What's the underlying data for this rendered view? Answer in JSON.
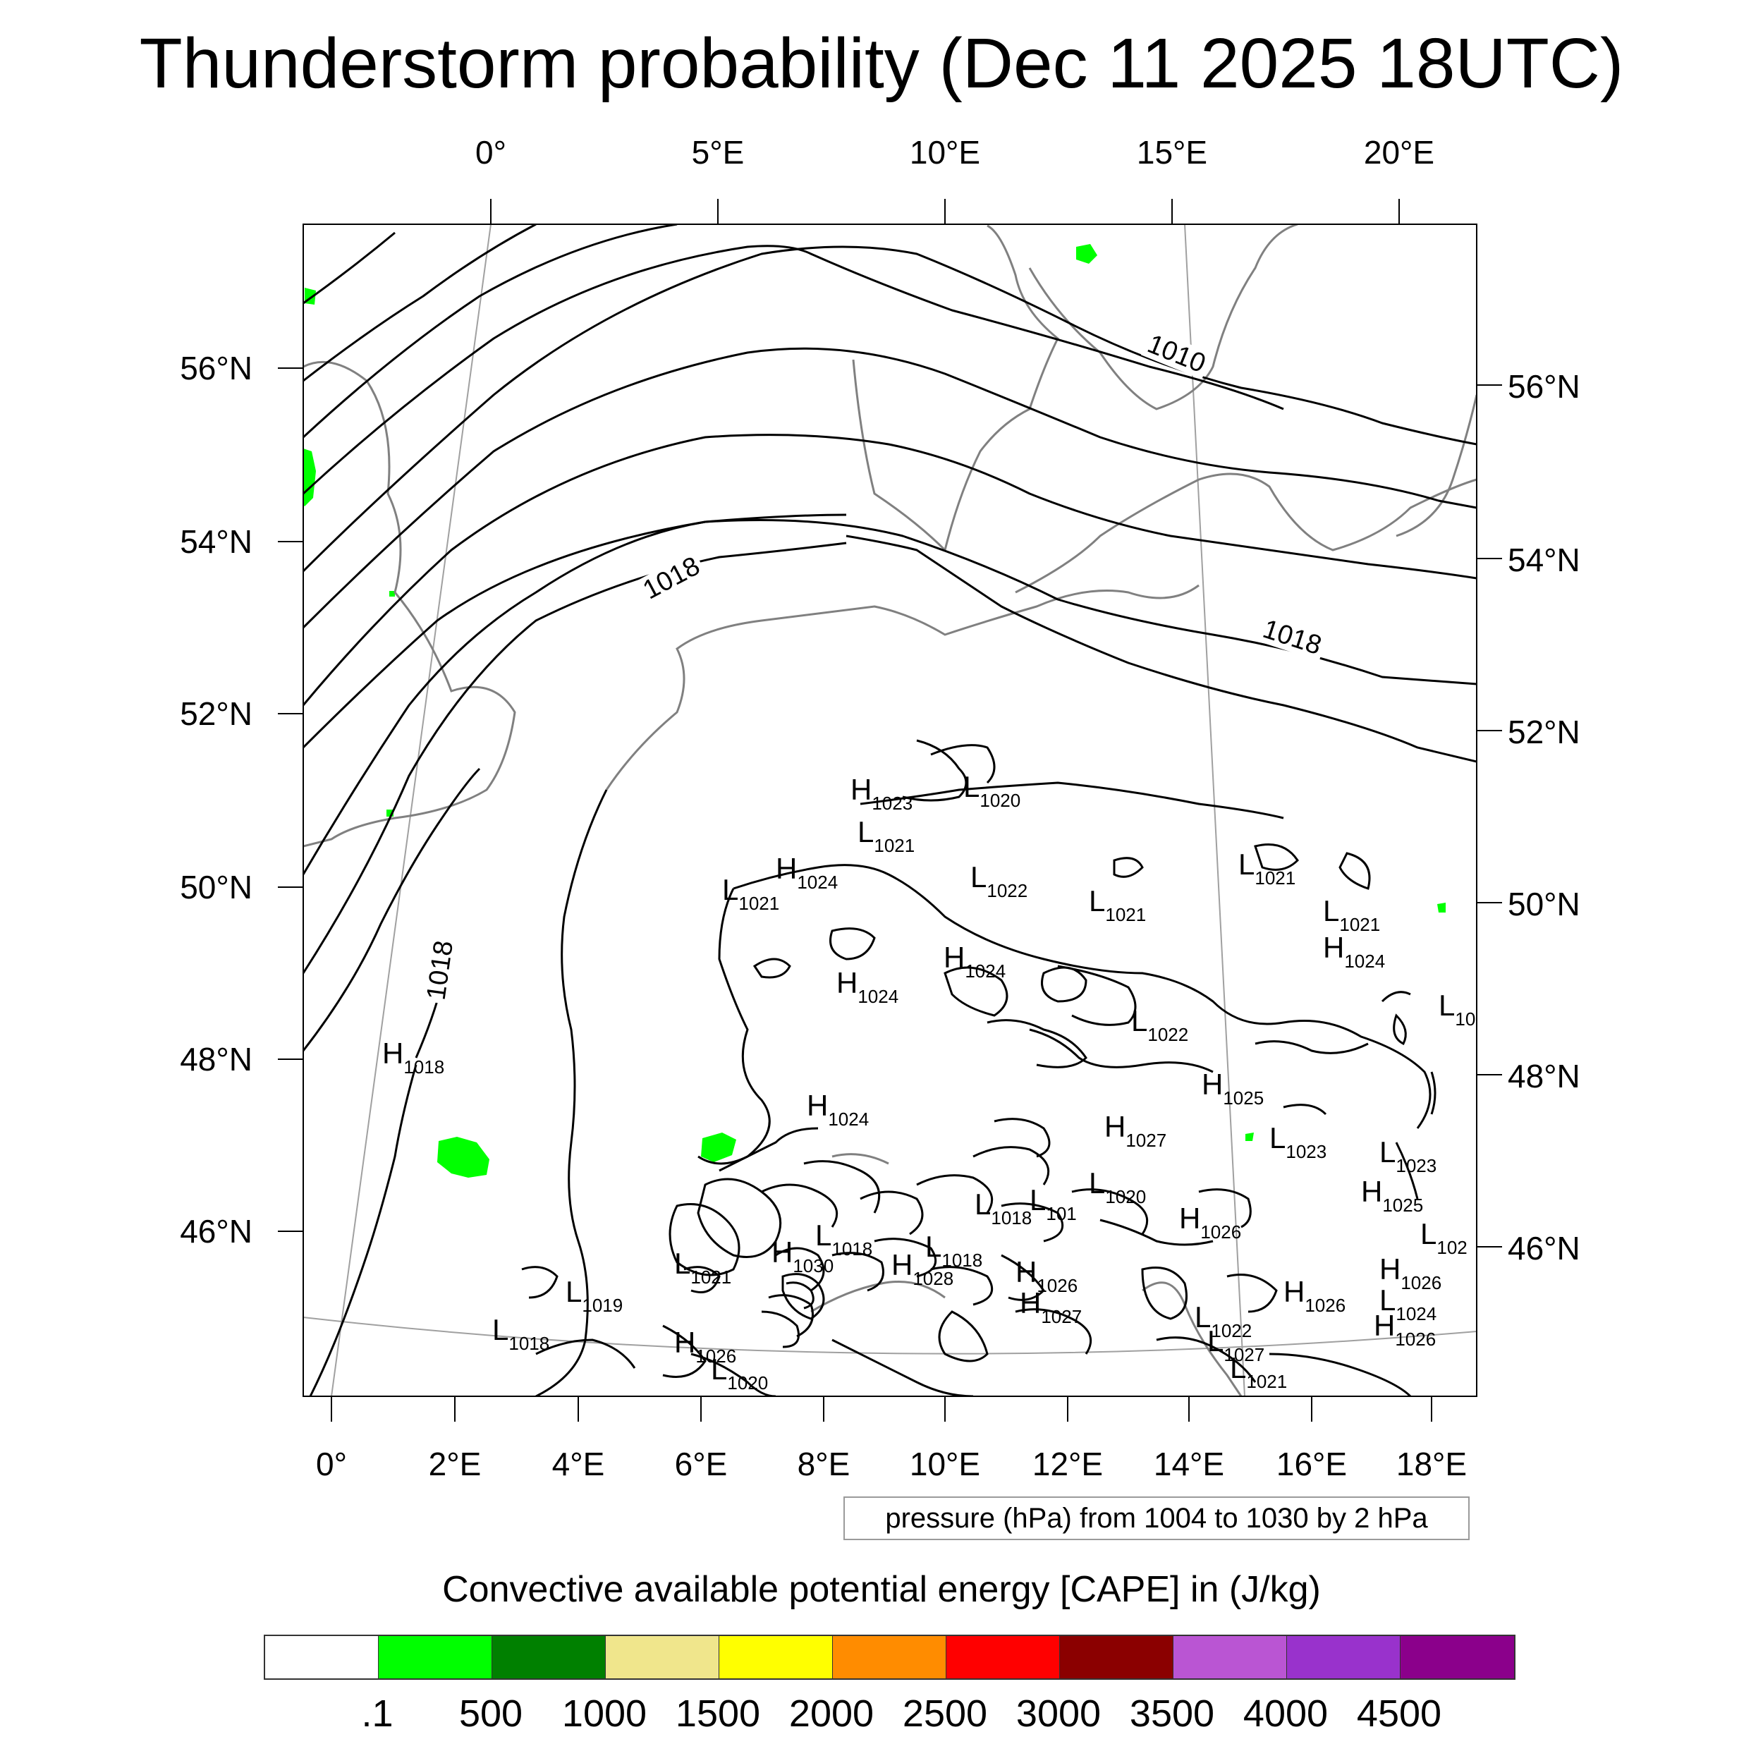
{
  "title": "Thunderstorm probability (Dec 11 2025 18UTC)",
  "top_lon_labels": [
    "0°",
    "5°E",
    "10°E",
    "15°E",
    "20°E"
  ],
  "bottom_lon_labels": [
    "0°",
    "2°E",
    "4°E",
    "6°E",
    "8°E",
    "10°E",
    "12°E",
    "14°E",
    "16°E",
    "18°E"
  ],
  "left_lat_labels": [
    "56°N",
    "54°N",
    "52°N",
    "50°N",
    "48°N",
    "46°N"
  ],
  "right_lat_labels": [
    "56°N",
    "54°N",
    "52°N",
    "50°N",
    "48°N",
    "46°N"
  ],
  "contour_labels": [
    "1010",
    "1018",
    "1018",
    "1018"
  ],
  "pressure_centers": [
    {
      "type": "H",
      "value": "1023"
    },
    {
      "type": "L",
      "value": "1020"
    },
    {
      "type": "L",
      "value": "1021"
    },
    {
      "type": "H",
      "value": "1024"
    },
    {
      "type": "L",
      "value": "1021"
    },
    {
      "type": "L",
      "value": "1022"
    },
    {
      "type": "L",
      "value": "1021"
    },
    {
      "type": "L",
      "value": "1021"
    },
    {
      "type": "L",
      "value": "1021"
    },
    {
      "type": "H",
      "value": "1024"
    },
    {
      "type": "H",
      "value": "1024"
    },
    {
      "type": "H",
      "value": "1024"
    },
    {
      "type": "L",
      "value": "1022"
    },
    {
      "type": "L",
      "value": "10"
    },
    {
      "type": "H",
      "value": "1018"
    },
    {
      "type": "H",
      "value": "1025"
    },
    {
      "type": "H",
      "value": "1024"
    },
    {
      "type": "H",
      "value": "1027"
    },
    {
      "type": "L",
      "value": "1023"
    },
    {
      "type": "L",
      "value": "1023"
    },
    {
      "type": "L",
      "value": "1020"
    },
    {
      "type": "L",
      "value": "1018"
    },
    {
      "type": "L",
      "value": "101"
    },
    {
      "type": "H",
      "value": "1026"
    },
    {
      "type": "H",
      "value": "1025"
    },
    {
      "type": "L",
      "value": "1018"
    },
    {
      "type": "H",
      "value": "1030"
    },
    {
      "type": "L",
      "value": "1018"
    },
    {
      "type": "H",
      "value": "1028"
    },
    {
      "type": "L",
      "value": "102"
    },
    {
      "type": "L",
      "value": "1021"
    },
    {
      "type": "H",
      "value": "1026"
    },
    {
      "type": "L",
      "value": "1019"
    },
    {
      "type": "H",
      "value": "1027"
    },
    {
      "type": "H",
      "value": "1026"
    },
    {
      "type": "L",
      "value": "1022"
    },
    {
      "type": "L",
      "value": "1024"
    },
    {
      "type": "L",
      "value": "1018"
    },
    {
      "type": "H",
      "value": "1026"
    },
    {
      "type": "L",
      "value": "1027"
    },
    {
      "type": "H",
      "value": "1026"
    },
    {
      "type": "L",
      "value": "1020"
    },
    {
      "type": "L",
      "value": "1021"
    },
    {
      "type": "H",
      "value": "1026"
    }
  ],
  "pressure_info": "pressure (hPa) from 1004 to 1030 by 2 hPa",
  "cape_title": "Convective available potential energy [CAPE] in (J/kg)",
  "colorbar": {
    "colors": [
      "#ffffff",
      "#00ff00",
      "#008000",
      "#f0e68c",
      "#ffff00",
      "#ff8c00",
      "#ff0000",
      "#8b0000",
      "#ba55d3",
      "#9932cc",
      "#8b008b"
    ],
    "labels": [
      ".1",
      "500",
      "1000",
      "1500",
      "2000",
      "2500",
      "3000",
      "3500",
      "4000",
      "4500"
    ]
  },
  "colors": {
    "coastline": "#808080",
    "isobar": "#000000",
    "cape_low": "#00ff00",
    "graticule": "#a0a0a0"
  }
}
